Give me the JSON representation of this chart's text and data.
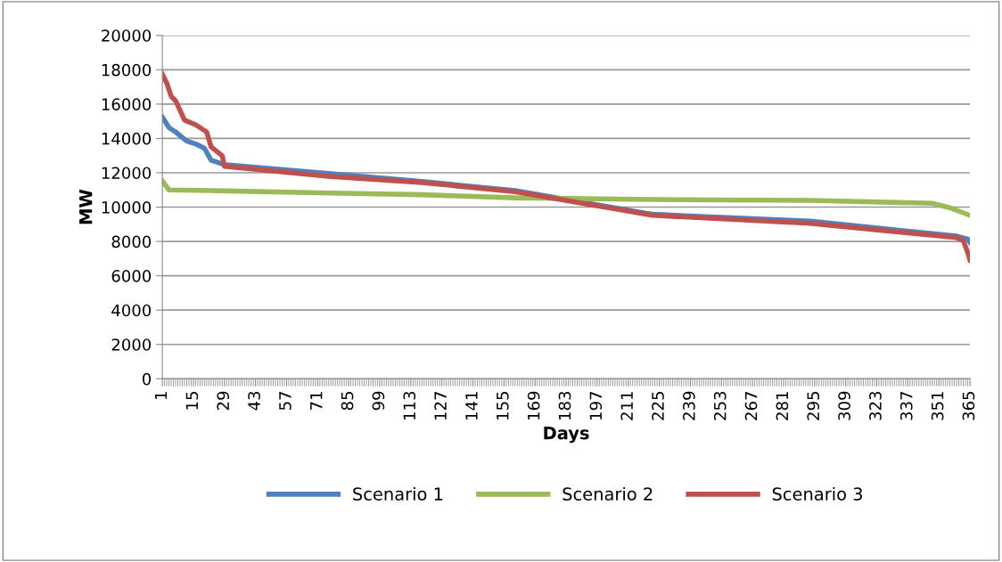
{
  "chart_data": {
    "type": "line",
    "xlabel": "Days",
    "ylabel": "MW",
    "xlim": [
      1,
      365
    ],
    "xticks": [
      1,
      15,
      29,
      43,
      57,
      71,
      85,
      99,
      113,
      127,
      141,
      155,
      169,
      183,
      197,
      211,
      225,
      239,
      253,
      267,
      281,
      295,
      309,
      323,
      337,
      351,
      365
    ],
    "ylim": [
      0,
      20000
    ],
    "yticks": [
      0,
      2000,
      4000,
      6000,
      8000,
      10000,
      12000,
      14000,
      16000,
      18000,
      20000
    ],
    "grid": "y",
    "legend": "bottom",
    "marker": "none",
    "line_style": "solid",
    "series": [
      {
        "name": "Scenario 1",
        "color": "#4f81bd",
        "x": [
          1,
          4,
          7,
          12,
          16,
          20,
          23,
          29,
          77,
          118,
          160,
          222,
          293,
          359,
          364,
          365
        ],
        "values": [
          15240,
          14630,
          14370,
          13850,
          13680,
          13420,
          12730,
          12470,
          11950,
          11490,
          10960,
          9580,
          9180,
          8310,
          8140,
          7950
        ]
      },
      {
        "name": "Scenario 2",
        "color": "#9bbb59",
        "x": [
          1,
          4,
          23,
          77,
          118,
          160,
          222,
          293,
          348,
          356,
          365
        ],
        "values": [
          11520,
          11000,
          10960,
          10820,
          10720,
          10540,
          10440,
          10390,
          10220,
          9960,
          9520
        ]
      },
      {
        "name": "Scenario 3",
        "color": "#c0504d",
        "x": [
          1,
          3,
          5,
          7,
          11,
          16,
          21,
          23,
          28,
          29,
          77,
          118,
          160,
          222,
          293,
          359,
          362,
          364,
          365
        ],
        "values": [
          17750,
          17230,
          16450,
          16190,
          15065,
          14800,
          14370,
          13510,
          12990,
          12380,
          11780,
          11430,
          10900,
          9520,
          9050,
          8220,
          8050,
          7360,
          6920
        ]
      }
    ]
  }
}
